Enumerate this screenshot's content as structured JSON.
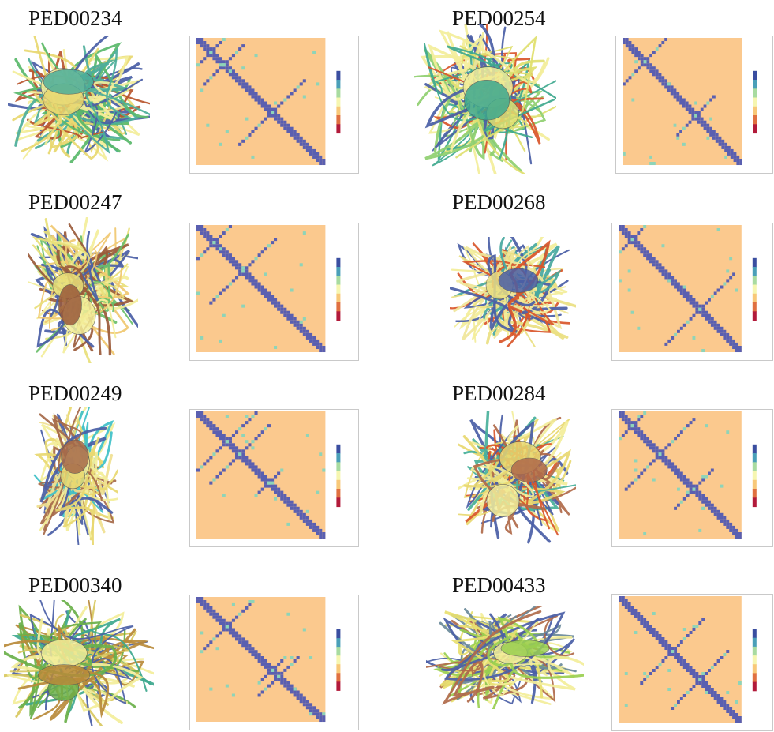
{
  "panels": [
    {
      "id": "PED00234",
      "title": "PED00234",
      "seed": 11,
      "blobs": 3,
      "colors": [
        "#4a5ea6",
        "#f3ee9a",
        "#e8d870",
        "#4cae9a",
        "#b8562e",
        "#59b86a"
      ]
    },
    {
      "id": "PED00254",
      "title": "PED00254",
      "seed": 23,
      "blobs": 3,
      "colors": [
        "#4a5ea6",
        "#f3ee9a",
        "#e0e070",
        "#3ea88e",
        "#d9562a",
        "#8fcf70"
      ]
    },
    {
      "id": "PED00247",
      "title": "PED00247",
      "seed": 37,
      "blobs": 3,
      "colors": [
        "#4a5ea6",
        "#f3ee9a",
        "#e8e07a",
        "#9a5a3a",
        "#6abf6a",
        "#f0c870"
      ]
    },
    {
      "id": "PED00268",
      "title": "PED00268",
      "seed": 41,
      "blobs": 2,
      "colors": [
        "#f3ee9a",
        "#eadf82",
        "#4a5ea6",
        "#d9562a",
        "#48a8a0",
        "#f0e69a"
      ]
    },
    {
      "id": "PED00249",
      "title": "PED00249",
      "seed": 53,
      "blobs": 3,
      "colors": [
        "#4a5ea6",
        "#f3ee9a",
        "#e8d870",
        "#a66a4a",
        "#3ec0c8",
        "#f0e090"
      ]
    },
    {
      "id": "PED00284",
      "title": "PED00284",
      "seed": 61,
      "blobs": 3,
      "colors": [
        "#4a5ea6",
        "#f3ee9a",
        "#e8d870",
        "#b06a4a",
        "#48b09a",
        "#d9562a"
      ]
    },
    {
      "id": "PED00340",
      "title": "PED00340",
      "seed": 71,
      "blobs": 3,
      "colors": [
        "#4a5ea6",
        "#f3ee9a",
        "#6ab04a",
        "#b88a3a",
        "#3ea88e",
        "#d8c860"
      ]
    },
    {
      "id": "PED00433",
      "title": "PED00433",
      "seed": 83,
      "blobs": 2,
      "colors": [
        "#4a5ea6",
        "#f3ee9a",
        "#9acf50",
        "#b06a4a",
        "#6a8a9a",
        "#e8e070"
      ]
    }
  ],
  "colorscale": [
    "#3a4ea0",
    "#4a9fb8",
    "#a8dba0",
    "#f6f6b0",
    "#f8c878",
    "#e07040",
    "#b21a3a"
  ],
  "map_colors": {
    "background": "#fbc98e",
    "diagonal": "#5a5fb0",
    "contact": "#8ed4b8"
  }
}
